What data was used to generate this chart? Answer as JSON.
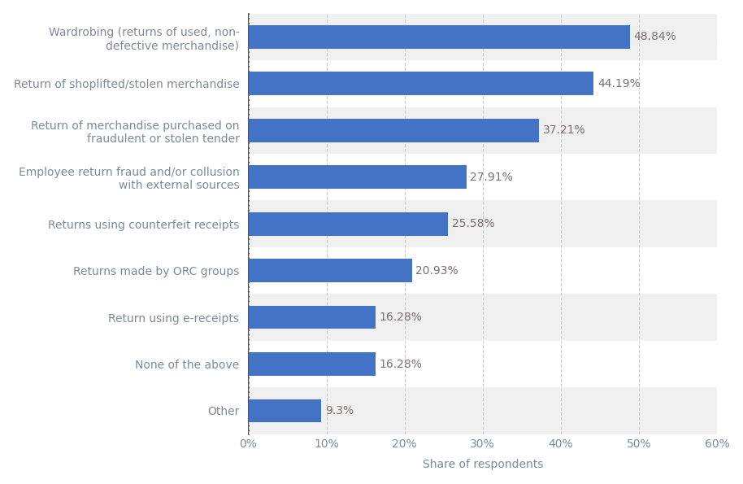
{
  "categories": [
    "Other",
    "None of the above",
    "Return using e-receipts",
    "Returns made by ORC groups",
    "Returns using counterfeit receipts",
    "Employee return fraud and/or collusion\nwith external sources",
    "Return of merchandise purchased on\nfraudulent or stolen tender",
    "Return of shoplifted/stolen merchandise",
    "Wardrobing (returns of used, non-\ndefective merchandise)"
  ],
  "values": [
    9.3,
    16.28,
    16.28,
    20.93,
    25.58,
    27.91,
    37.21,
    44.19,
    48.84
  ],
  "labels": [
    "9.3%",
    "16.28%",
    "16.28%",
    "20.93%",
    "25.58%",
    "27.91%",
    "37.21%",
    "44.19%",
    "48.84%"
  ],
  "bar_color": "#4472C4",
  "background_color": "#ffffff",
  "plot_background_color": "#ffffff",
  "row_even_color": "#f0f0f0",
  "row_odd_color": "#ffffff",
  "xlabel": "Share of respondents",
  "xlim": [
    0,
    60
  ],
  "xticks": [
    0,
    10,
    20,
    30,
    40,
    50,
    60
  ],
  "xtick_labels": [
    "0%",
    "10%",
    "20%",
    "30%",
    "40%",
    "50%",
    "60%"
  ],
  "label_fontsize": 10,
  "tick_fontsize": 10,
  "value_label_fontsize": 10,
  "bar_height": 0.5,
  "label_color": "#7b8a9b",
  "value_color": "#7b6f6f",
  "grid_color": "#cccccc",
  "spine_color": "#333333"
}
